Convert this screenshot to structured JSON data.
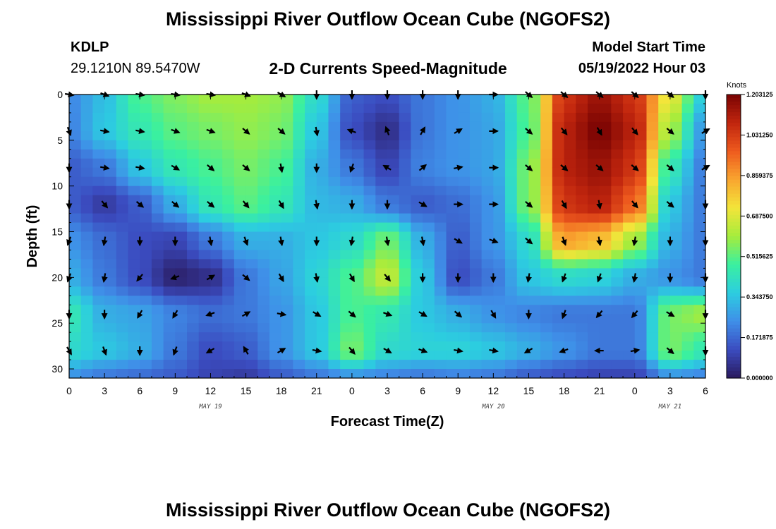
{
  "header": {
    "title": "Mississippi River Outflow Ocean Cube (NGOFS2)",
    "station_id": "KDLP",
    "station_coords": "29.1210N  89.5470W",
    "subtitle": "2-D Currents Speed-Magnitude",
    "model_start_label": "Model Start Time",
    "model_start_value": "05/19/2022 Hour 03"
  },
  "footer": {
    "title": "Mississippi River Outflow Ocean Cube (NGOFS2)"
  },
  "chart_data": {
    "type": "heatmap",
    "title": "2-D Currents Speed-Magnitude",
    "xlabel": "Forecast Time(Z)",
    "ylabel": "Depth (ft)",
    "x_unit": "hours from 05/19 00Z",
    "xlim": [
      0,
      54
    ],
    "ylim": [
      0,
      31
    ],
    "y_inverted": true,
    "x_ticks": [
      0,
      3,
      6,
      9,
      12,
      15,
      18,
      21,
      24,
      27,
      30,
      33,
      36,
      39,
      42,
      45,
      48,
      51,
      54
    ],
    "x_tick_labels": [
      "0",
      "3",
      "6",
      "9",
      "12",
      "15",
      "18",
      "21",
      "0",
      "3",
      "6",
      "9",
      "12",
      "15",
      "18",
      "21",
      "0",
      "3",
      "6"
    ],
    "y_ticks": [
      0,
      5,
      10,
      15,
      20,
      25,
      30
    ],
    "y_tick_labels": [
      "0",
      "5",
      "10",
      "15",
      "20",
      "25",
      "30"
    ],
    "date_labels": [
      {
        "x": 12,
        "label": "MAY 19"
      },
      {
        "x": 36,
        "label": "MAY 20"
      },
      {
        "x": 51,
        "label": "MAY 21"
      }
    ],
    "colorbar": {
      "title": "Knots",
      "min": 0,
      "max": 1.203125,
      "tick_values": [
        0,
        0.171875,
        0.34375,
        0.515625,
        0.6875,
        0.859375,
        1.03125,
        1.203125
      ],
      "tick_labels": [
        "0.000000",
        "0.171875",
        "0.343750",
        "0.515625",
        "0.687500",
        "0.859375",
        "1.031250",
        "1.203125"
      ],
      "colors": [
        "#2a1a5e",
        "#3b4cc0",
        "#3f8fe8",
        "#2ccde0",
        "#3af0a0",
        "#a6ec3c",
        "#f3e53a",
        "#f9a52f",
        "#ee5a1e",
        "#c0250e",
        "#7a0403"
      ]
    },
    "speed_anchors": [
      {
        "x": 0,
        "y": 0,
        "v": 0.23
      },
      {
        "x": 3,
        "y": 0,
        "v": 0.33
      },
      {
        "x": 6,
        "y": 0,
        "v": 0.5
      },
      {
        "x": 9,
        "y": 0,
        "v": 0.56
      },
      {
        "x": 12,
        "y": 0,
        "v": 0.6
      },
      {
        "x": 15,
        "y": 0,
        "v": 0.6
      },
      {
        "x": 18,
        "y": 0,
        "v": 0.58
      },
      {
        "x": 21,
        "y": 0,
        "v": 0.4
      },
      {
        "x": 24,
        "y": 0,
        "v": 0.15
      },
      {
        "x": 27,
        "y": 0,
        "v": 0.12
      },
      {
        "x": 30,
        "y": 0,
        "v": 0.2
      },
      {
        "x": 33,
        "y": 0,
        "v": 0.25
      },
      {
        "x": 36,
        "y": 0,
        "v": 0.3
      },
      {
        "x": 39,
        "y": 0,
        "v": 0.52
      },
      {
        "x": 42,
        "y": 0,
        "v": 1.05
      },
      {
        "x": 45,
        "y": 0,
        "v": 1.15
      },
      {
        "x": 48,
        "y": 0,
        "v": 1.05
      },
      {
        "x": 51,
        "y": 0,
        "v": 0.7
      },
      {
        "x": 54,
        "y": 0,
        "v": 0.35
      },
      {
        "x": 0,
        "y": 4,
        "v": 0.22
      },
      {
        "x": 3,
        "y": 4,
        "v": 0.35
      },
      {
        "x": 6,
        "y": 4,
        "v": 0.45
      },
      {
        "x": 9,
        "y": 4,
        "v": 0.52
      },
      {
        "x": 12,
        "y": 4,
        "v": 0.55
      },
      {
        "x": 15,
        "y": 4,
        "v": 0.58
      },
      {
        "x": 18,
        "y": 4,
        "v": 0.55
      },
      {
        "x": 21,
        "y": 4,
        "v": 0.35
      },
      {
        "x": 24,
        "y": 4,
        "v": 0.12
      },
      {
        "x": 27,
        "y": 4,
        "v": 0.05
      },
      {
        "x": 30,
        "y": 4,
        "v": 0.2
      },
      {
        "x": 33,
        "y": 4,
        "v": 0.25
      },
      {
        "x": 36,
        "y": 4,
        "v": 0.28
      },
      {
        "x": 39,
        "y": 4,
        "v": 0.5
      },
      {
        "x": 42,
        "y": 4,
        "v": 1.1
      },
      {
        "x": 45,
        "y": 4,
        "v": 1.2
      },
      {
        "x": 48,
        "y": 4,
        "v": 1.1
      },
      {
        "x": 51,
        "y": 4,
        "v": 0.6
      },
      {
        "x": 54,
        "y": 4,
        "v": 0.25
      },
      {
        "x": 0,
        "y": 8,
        "v": 0.15
      },
      {
        "x": 3,
        "y": 8,
        "v": 0.2
      },
      {
        "x": 6,
        "y": 8,
        "v": 0.35
      },
      {
        "x": 9,
        "y": 8,
        "v": 0.45
      },
      {
        "x": 12,
        "y": 8,
        "v": 0.5
      },
      {
        "x": 15,
        "y": 8,
        "v": 0.55
      },
      {
        "x": 18,
        "y": 8,
        "v": 0.5
      },
      {
        "x": 21,
        "y": 8,
        "v": 0.3
      },
      {
        "x": 24,
        "y": 8,
        "v": 0.2
      },
      {
        "x": 27,
        "y": 8,
        "v": 0.1
      },
      {
        "x": 30,
        "y": 8,
        "v": 0.22
      },
      {
        "x": 33,
        "y": 8,
        "v": 0.25
      },
      {
        "x": 36,
        "y": 8,
        "v": 0.28
      },
      {
        "x": 39,
        "y": 8,
        "v": 0.55
      },
      {
        "x": 42,
        "y": 8,
        "v": 1.1
      },
      {
        "x": 45,
        "y": 8,
        "v": 1.15
      },
      {
        "x": 48,
        "y": 8,
        "v": 1.05
      },
      {
        "x": 51,
        "y": 8,
        "v": 0.45
      },
      {
        "x": 54,
        "y": 8,
        "v": 0.2
      },
      {
        "x": 0,
        "y": 12,
        "v": 0.15
      },
      {
        "x": 3,
        "y": 12,
        "v": 0.08
      },
      {
        "x": 6,
        "y": 12,
        "v": 0.15
      },
      {
        "x": 9,
        "y": 12,
        "v": 0.3
      },
      {
        "x": 12,
        "y": 12,
        "v": 0.45
      },
      {
        "x": 15,
        "y": 12,
        "v": 0.52
      },
      {
        "x": 18,
        "y": 12,
        "v": 0.45
      },
      {
        "x": 21,
        "y": 12,
        "v": 0.32
      },
      {
        "x": 24,
        "y": 12,
        "v": 0.3
      },
      {
        "x": 27,
        "y": 12,
        "v": 0.2
      },
      {
        "x": 30,
        "y": 12,
        "v": 0.15
      },
      {
        "x": 33,
        "y": 12,
        "v": 0.18
      },
      {
        "x": 36,
        "y": 12,
        "v": 0.25
      },
      {
        "x": 39,
        "y": 12,
        "v": 0.55
      },
      {
        "x": 42,
        "y": 12,
        "v": 1.05
      },
      {
        "x": 45,
        "y": 12,
        "v": 1.1
      },
      {
        "x": 48,
        "y": 12,
        "v": 0.95
      },
      {
        "x": 51,
        "y": 12,
        "v": 0.35
      },
      {
        "x": 54,
        "y": 12,
        "v": 0.2
      },
      {
        "x": 0,
        "y": 16,
        "v": 0.25
      },
      {
        "x": 3,
        "y": 16,
        "v": 0.18
      },
      {
        "x": 6,
        "y": 16,
        "v": 0.12
      },
      {
        "x": 9,
        "y": 16,
        "v": 0.1
      },
      {
        "x": 12,
        "y": 16,
        "v": 0.2
      },
      {
        "x": 15,
        "y": 16,
        "v": 0.3
      },
      {
        "x": 18,
        "y": 16,
        "v": 0.3
      },
      {
        "x": 21,
        "y": 16,
        "v": 0.35
      },
      {
        "x": 24,
        "y": 16,
        "v": 0.4
      },
      {
        "x": 27,
        "y": 16,
        "v": 0.55
      },
      {
        "x": 30,
        "y": 16,
        "v": 0.3
      },
      {
        "x": 33,
        "y": 16,
        "v": 0.15
      },
      {
        "x": 36,
        "y": 16,
        "v": 0.25
      },
      {
        "x": 39,
        "y": 16,
        "v": 0.4
      },
      {
        "x": 42,
        "y": 16,
        "v": 0.85
      },
      {
        "x": 45,
        "y": 16,
        "v": 0.8
      },
      {
        "x": 48,
        "y": 16,
        "v": 0.6
      },
      {
        "x": 51,
        "y": 16,
        "v": 0.3
      },
      {
        "x": 54,
        "y": 16,
        "v": 0.2
      },
      {
        "x": 0,
        "y": 20,
        "v": 0.3
      },
      {
        "x": 3,
        "y": 20,
        "v": 0.2
      },
      {
        "x": 6,
        "y": 20,
        "v": 0.12
      },
      {
        "x": 9,
        "y": 20,
        "v": 0.02
      },
      {
        "x": 12,
        "y": 20,
        "v": 0.05
      },
      {
        "x": 15,
        "y": 20,
        "v": 0.2
      },
      {
        "x": 18,
        "y": 20,
        "v": 0.28
      },
      {
        "x": 21,
        "y": 20,
        "v": 0.38
      },
      {
        "x": 24,
        "y": 20,
        "v": 0.5
      },
      {
        "x": 27,
        "y": 20,
        "v": 0.65
      },
      {
        "x": 30,
        "y": 20,
        "v": 0.35
      },
      {
        "x": 33,
        "y": 20,
        "v": 0.12
      },
      {
        "x": 36,
        "y": 20,
        "v": 0.2
      },
      {
        "x": 39,
        "y": 20,
        "v": 0.35
      },
      {
        "x": 42,
        "y": 20,
        "v": 0.4
      },
      {
        "x": 45,
        "y": 20,
        "v": 0.38
      },
      {
        "x": 48,
        "y": 20,
        "v": 0.3
      },
      {
        "x": 51,
        "y": 20,
        "v": 0.25
      },
      {
        "x": 54,
        "y": 20,
        "v": 0.2
      },
      {
        "x": 0,
        "y": 24,
        "v": 0.45
      },
      {
        "x": 3,
        "y": 24,
        "v": 0.3
      },
      {
        "x": 6,
        "y": 24,
        "v": 0.28
      },
      {
        "x": 9,
        "y": 24,
        "v": 0.22
      },
      {
        "x": 12,
        "y": 24,
        "v": 0.18
      },
      {
        "x": 15,
        "y": 24,
        "v": 0.2
      },
      {
        "x": 18,
        "y": 24,
        "v": 0.25
      },
      {
        "x": 21,
        "y": 24,
        "v": 0.35
      },
      {
        "x": 24,
        "y": 24,
        "v": 0.5
      },
      {
        "x": 27,
        "y": 24,
        "v": 0.45
      },
      {
        "x": 30,
        "y": 24,
        "v": 0.35
      },
      {
        "x": 33,
        "y": 24,
        "v": 0.3
      },
      {
        "x": 36,
        "y": 24,
        "v": 0.25
      },
      {
        "x": 39,
        "y": 24,
        "v": 0.22
      },
      {
        "x": 42,
        "y": 24,
        "v": 0.2
      },
      {
        "x": 45,
        "y": 24,
        "v": 0.2
      },
      {
        "x": 48,
        "y": 24,
        "v": 0.2
      },
      {
        "x": 51,
        "y": 24,
        "v": 0.55
      },
      {
        "x": 54,
        "y": 24,
        "v": 0.6
      },
      {
        "x": 0,
        "y": 28,
        "v": 0.4
      },
      {
        "x": 3,
        "y": 28,
        "v": 0.35
      },
      {
        "x": 6,
        "y": 28,
        "v": 0.3
      },
      {
        "x": 9,
        "y": 28,
        "v": 0.2
      },
      {
        "x": 12,
        "y": 28,
        "v": 0.12
      },
      {
        "x": 15,
        "y": 28,
        "v": 0.15
      },
      {
        "x": 18,
        "y": 28,
        "v": 0.25
      },
      {
        "x": 21,
        "y": 28,
        "v": 0.35
      },
      {
        "x": 24,
        "y": 28,
        "v": 0.55
      },
      {
        "x": 27,
        "y": 28,
        "v": 0.4
      },
      {
        "x": 30,
        "y": 28,
        "v": 0.38
      },
      {
        "x": 33,
        "y": 28,
        "v": 0.38
      },
      {
        "x": 36,
        "y": 28,
        "v": 0.35
      },
      {
        "x": 39,
        "y": 28,
        "v": 0.3
      },
      {
        "x": 42,
        "y": 28,
        "v": 0.25
      },
      {
        "x": 45,
        "y": 28,
        "v": 0.2
      },
      {
        "x": 48,
        "y": 28,
        "v": 0.2
      },
      {
        "x": 51,
        "y": 28,
        "v": 0.55
      },
      {
        "x": 54,
        "y": 28,
        "v": 0.45
      },
      {
        "x": 0,
        "y": 31,
        "v": 0.25
      },
      {
        "x": 3,
        "y": 31,
        "v": 0.2
      },
      {
        "x": 6,
        "y": 31,
        "v": 0.18
      },
      {
        "x": 9,
        "y": 31,
        "v": 0.15
      },
      {
        "x": 12,
        "y": 31,
        "v": 0.1
      },
      {
        "x": 15,
        "y": 31,
        "v": 0.08
      },
      {
        "x": 18,
        "y": 31,
        "v": 0.15
      },
      {
        "x": 21,
        "y": 31,
        "v": 0.2
      },
      {
        "x": 24,
        "y": 31,
        "v": 0.25
      },
      {
        "x": 27,
        "y": 31,
        "v": 0.22
      },
      {
        "x": 30,
        "y": 31,
        "v": 0.2
      },
      {
        "x": 33,
        "y": 31,
        "v": 0.22
      },
      {
        "x": 36,
        "y": 31,
        "v": 0.2
      },
      {
        "x": 39,
        "y": 31,
        "v": 0.15
      },
      {
        "x": 42,
        "y": 31,
        "v": 0.12
      },
      {
        "x": 45,
        "y": 31,
        "v": 0.1
      },
      {
        "x": 48,
        "y": 31,
        "v": 0.1
      },
      {
        "x": 51,
        "y": 31,
        "v": 0.25
      },
      {
        "x": 54,
        "y": 31,
        "v": 0.22
      }
    ],
    "vectors": {
      "x": [
        0,
        3,
        6,
        9,
        12,
        15,
        18,
        21,
        24,
        27,
        30,
        33,
        36,
        39,
        42,
        45,
        48,
        51,
        54
      ],
      "depths": [
        0,
        4,
        8,
        12,
        16,
        20,
        24,
        28
      ],
      "direction_deg": [
        [
          100,
          110,
          100,
          100,
          100,
          110,
          120,
          180,
          180,
          180,
          180,
          180,
          90,
          130,
          130,
          130,
          130,
          130,
          180
        ],
        [
          160,
          100,
          100,
          110,
          110,
          130,
          130,
          170,
          290,
          340,
          30,
          60,
          90,
          130,
          140,
          150,
          140,
          130,
          60
        ],
        [
          180,
          100,
          100,
          120,
          130,
          130,
          170,
          180,
          200,
          300,
          50,
          80,
          90,
          130,
          130,
          130,
          130,
          130,
          60
        ],
        [
          180,
          140,
          130,
          130,
          130,
          140,
          150,
          170,
          180,
          180,
          120,
          90,
          90,
          130,
          150,
          170,
          140,
          130,
          180
        ],
        [
          200,
          190,
          180,
          180,
          170,
          160,
          170,
          180,
          190,
          170,
          170,
          120,
          110,
          130,
          160,
          170,
          190,
          180,
          180
        ],
        [
          200,
          190,
          220,
          250,
          60,
          130,
          150,
          170,
          150,
          140,
          180,
          180,
          180,
          190,
          200,
          200,
          190,
          180,
          180
        ],
        [
          180,
          180,
          210,
          210,
          250,
          60,
          100,
          120,
          130,
          110,
          120,
          130,
          150,
          180,
          200,
          220,
          220,
          120,
          180
        ],
        [
          150,
          160,
          180,
          200,
          240,
          330,
          60,
          100,
          140,
          120,
          110,
          100,
          100,
          240,
          250,
          270,
          80,
          130,
          180
        ]
      ]
    }
  }
}
